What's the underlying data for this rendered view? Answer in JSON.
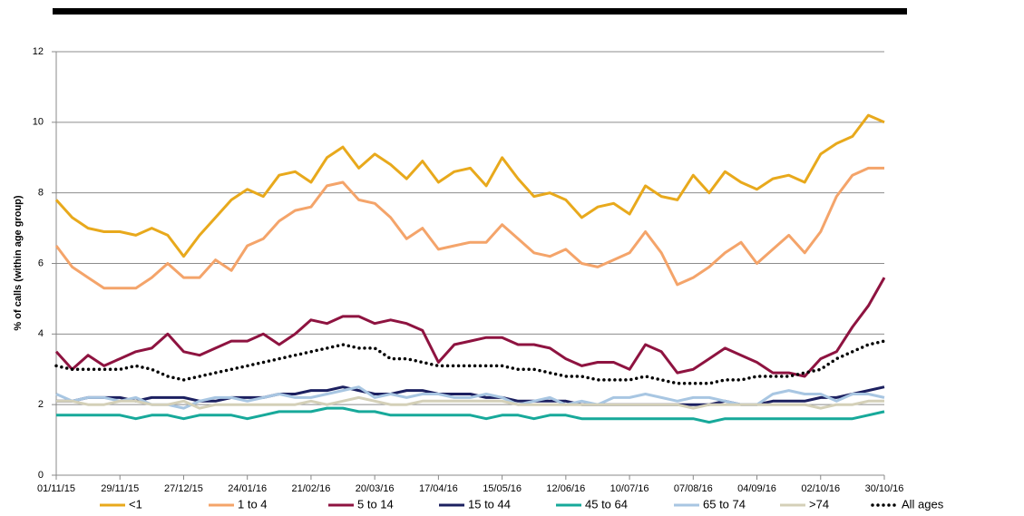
{
  "chart_data": {
    "type": "line",
    "ylabel": "% of calls (within age group)",
    "x": [
      "01/11/15",
      "08/11/15",
      "15/11/15",
      "22/11/15",
      "29/11/15",
      "06/12/15",
      "13/12/15",
      "20/12/15",
      "27/12/15",
      "03/01/16",
      "10/01/16",
      "17/01/16",
      "24/01/16",
      "31/01/16",
      "07/02/16",
      "14/02/16",
      "21/02/16",
      "28/02/16",
      "06/03/16",
      "13/03/16",
      "20/03/16",
      "27/03/16",
      "03/04/16",
      "10/04/16",
      "17/04/16",
      "24/04/16",
      "01/05/16",
      "08/05/16",
      "15/05/16",
      "22/05/16",
      "29/05/16",
      "05/06/16",
      "12/06/16",
      "19/06/16",
      "26/06/16",
      "03/07/16",
      "10/07/16",
      "17/07/16",
      "24/07/16",
      "31/07/16",
      "07/08/16",
      "14/08/16",
      "21/08/16",
      "28/08/16",
      "04/09/16",
      "11/09/16",
      "18/09/16",
      "25/09/16",
      "02/10/16",
      "09/10/16",
      "16/10/16",
      "23/10/16",
      "30/10/16"
    ],
    "xlim": [
      "01/11/15",
      "30/10/16"
    ],
    "xticks": [
      "01/11/15",
      "29/11/15",
      "27/12/15",
      "24/01/16",
      "21/02/16",
      "20/03/16",
      "17/04/16",
      "15/05/16",
      "12/06/16",
      "10/07/16",
      "07/08/16",
      "04/09/16",
      "02/10/16",
      "30/10/16"
    ],
    "ylim": [
      0,
      12
    ],
    "yticks": [
      0,
      2,
      4,
      6,
      8,
      10,
      12
    ],
    "grid": true,
    "legend": "bottom",
    "series": [
      {
        "name": "<1",
        "color": "#e8a91c",
        "style": "solid",
        "values": [
          7.8,
          7.3,
          7.0,
          6.9,
          6.9,
          6.8,
          7.0,
          6.8,
          6.2,
          6.8,
          7.3,
          7.8,
          8.1,
          7.9,
          8.5,
          8.6,
          8.3,
          9.0,
          9.3,
          8.7,
          9.1,
          8.8,
          8.4,
          8.9,
          8.3,
          8.6,
          8.7,
          8.2,
          9.0,
          8.4,
          7.9,
          8.0,
          7.8,
          7.3,
          7.6,
          7.7,
          7.4,
          8.2,
          7.9,
          7.8,
          8.5,
          8.0,
          8.6,
          8.3,
          8.1,
          8.4,
          8.5,
          8.3,
          9.1,
          9.4,
          9.6,
          10.2,
          10.0
        ]
      },
      {
        "name": "1 to 4",
        "color": "#f4a46a",
        "style": "solid",
        "values": [
          6.5,
          5.9,
          5.6,
          5.3,
          5.3,
          5.3,
          5.6,
          6.0,
          5.6,
          5.6,
          6.1,
          5.8,
          6.5,
          6.7,
          7.2,
          7.5,
          7.6,
          8.2,
          8.3,
          7.8,
          7.7,
          7.3,
          6.7,
          7.0,
          6.4,
          6.5,
          6.6,
          6.6,
          7.1,
          6.7,
          6.3,
          6.2,
          6.4,
          6.0,
          5.9,
          6.1,
          6.3,
          6.9,
          6.3,
          5.4,
          5.6,
          5.9,
          6.3,
          6.6,
          6.0,
          6.4,
          6.8,
          6.3,
          6.9,
          7.9,
          8.5,
          8.7,
          8.7
        ]
      },
      {
        "name": "5 to 14",
        "color": "#8e1340",
        "style": "solid",
        "values": [
          3.5,
          3.0,
          3.4,
          3.1,
          3.3,
          3.5,
          3.6,
          4.0,
          3.5,
          3.4,
          3.6,
          3.8,
          3.8,
          4.0,
          3.7,
          4.0,
          4.4,
          4.3,
          4.5,
          4.5,
          4.3,
          4.4,
          4.3,
          4.1,
          3.2,
          3.7,
          3.8,
          3.9,
          3.9,
          3.7,
          3.7,
          3.6,
          3.3,
          3.1,
          3.2,
          3.2,
          3.0,
          3.7,
          3.5,
          2.9,
          3.0,
          3.3,
          3.6,
          3.4,
          3.2,
          2.9,
          2.9,
          2.8,
          3.3,
          3.5,
          4.2,
          4.8,
          5.6
        ]
      },
      {
        "name": "15 to 44",
        "color": "#1c2060",
        "style": "solid",
        "values": [
          2.1,
          2.1,
          2.2,
          2.2,
          2.2,
          2.1,
          2.2,
          2.2,
          2.2,
          2.1,
          2.1,
          2.2,
          2.2,
          2.2,
          2.3,
          2.3,
          2.4,
          2.4,
          2.5,
          2.4,
          2.3,
          2.3,
          2.4,
          2.4,
          2.3,
          2.3,
          2.3,
          2.2,
          2.2,
          2.1,
          2.1,
          2.1,
          2.1,
          2.0,
          2.0,
          2.0,
          2.0,
          2.0,
          2.0,
          2.0,
          2.0,
          2.0,
          2.1,
          2.0,
          2.0,
          2.1,
          2.1,
          2.1,
          2.2,
          2.2,
          2.3,
          2.4,
          2.5
        ]
      },
      {
        "name": "45 to 64",
        "color": "#17a99a",
        "style": "solid",
        "values": [
          1.7,
          1.7,
          1.7,
          1.7,
          1.7,
          1.6,
          1.7,
          1.7,
          1.6,
          1.7,
          1.7,
          1.7,
          1.6,
          1.7,
          1.8,
          1.8,
          1.8,
          1.9,
          1.9,
          1.8,
          1.8,
          1.7,
          1.7,
          1.7,
          1.7,
          1.7,
          1.7,
          1.6,
          1.7,
          1.7,
          1.6,
          1.7,
          1.7,
          1.6,
          1.6,
          1.6,
          1.6,
          1.6,
          1.6,
          1.6,
          1.6,
          1.5,
          1.6,
          1.6,
          1.6,
          1.6,
          1.6,
          1.6,
          1.6,
          1.6,
          1.6,
          1.7,
          1.8
        ]
      },
      {
        "name": "65 to 74",
        "color": "#a8c6e2",
        "style": "solid",
        "values": [
          2.3,
          2.1,
          2.2,
          2.2,
          2.1,
          2.2,
          2.0,
          2.0,
          1.9,
          2.1,
          2.2,
          2.2,
          2.1,
          2.2,
          2.3,
          2.2,
          2.2,
          2.3,
          2.4,
          2.5,
          2.2,
          2.3,
          2.2,
          2.3,
          2.3,
          2.2,
          2.2,
          2.3,
          2.2,
          2.0,
          2.1,
          2.2,
          2.0,
          2.1,
          2.0,
          2.2,
          2.2,
          2.3,
          2.2,
          2.1,
          2.2,
          2.2,
          2.1,
          2.0,
          2.0,
          2.3,
          2.4,
          2.3,
          2.3,
          2.1,
          2.3,
          2.3,
          2.2
        ]
      },
      {
        "name": ">74",
        "color": "#d4d0b8",
        "style": "solid",
        "values": [
          2.1,
          2.1,
          2.0,
          2.0,
          2.1,
          2.1,
          2.0,
          2.0,
          2.1,
          1.9,
          2.0,
          2.0,
          2.0,
          2.0,
          2.0,
          2.0,
          2.1,
          2.0,
          2.1,
          2.2,
          2.1,
          2.0,
          2.0,
          2.1,
          2.1,
          2.1,
          2.1,
          2.1,
          2.1,
          2.0,
          2.0,
          2.0,
          2.0,
          2.0,
          2.0,
          2.0,
          2.0,
          2.0,
          2.0,
          2.0,
          1.9,
          2.0,
          2.0,
          2.0,
          2.0,
          2.0,
          2.0,
          2.0,
          1.9,
          2.0,
          2.0,
          2.1,
          2.1
        ]
      },
      {
        "name": "All ages",
        "color": "#000000",
        "style": "dotted",
        "values": [
          3.1,
          3.0,
          3.0,
          3.0,
          3.0,
          3.1,
          3.0,
          2.8,
          2.7,
          2.8,
          2.9,
          3.0,
          3.1,
          3.2,
          3.3,
          3.4,
          3.5,
          3.6,
          3.7,
          3.6,
          3.6,
          3.3,
          3.3,
          3.2,
          3.1,
          3.1,
          3.1,
          3.1,
          3.1,
          3.0,
          3.0,
          2.9,
          2.8,
          2.8,
          2.7,
          2.7,
          2.7,
          2.8,
          2.7,
          2.6,
          2.6,
          2.6,
          2.7,
          2.7,
          2.8,
          2.8,
          2.8,
          2.9,
          3.0,
          3.3,
          3.5,
          3.7,
          3.8
        ]
      }
    ]
  }
}
